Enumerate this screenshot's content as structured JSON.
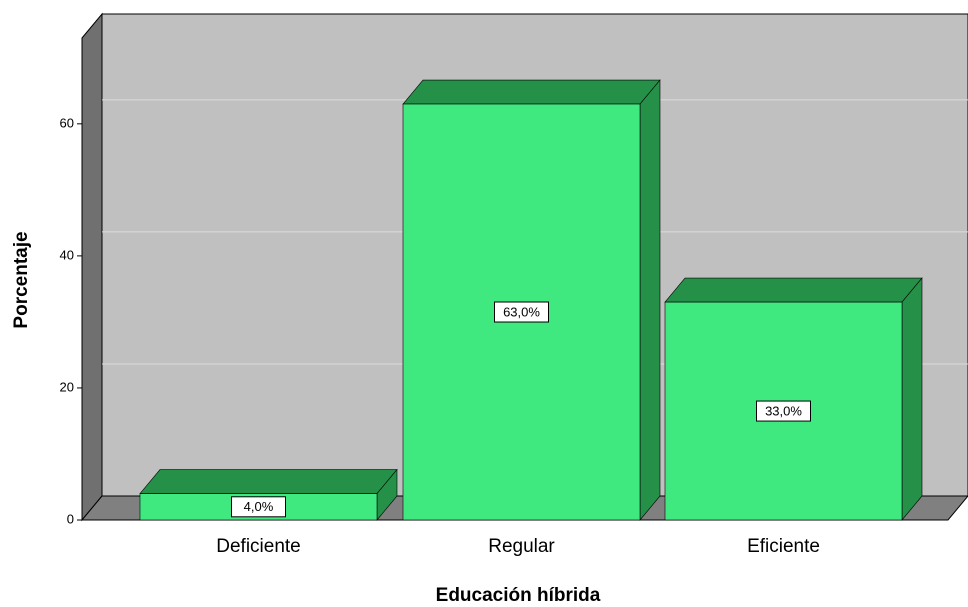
{
  "chart_data": {
    "type": "bar",
    "x_label": "Educación híbrida",
    "y_label": "Porcentaje",
    "categories": [
      "Deficiente",
      "Regular",
      "Eficiente"
    ],
    "values": [
      4,
      63,
      33
    ],
    "value_labels": [
      "4,0%",
      "63,0%",
      "33,0%"
    ],
    "color": "#40e880",
    "ylim": [
      0,
      73
    ],
    "yticks": [
      0,
      20,
      40,
      60
    ],
    "grid": true
  }
}
